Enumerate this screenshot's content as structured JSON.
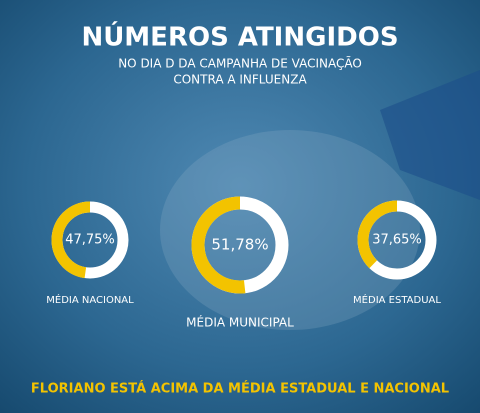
{
  "header": {
    "title": "NÚMEROS ATINGIDOS",
    "subtitle_lines": [
      "NO DIA D DA CAMPANHA DE VACINAÇÃO",
      "CONTRA A INFLUENZA"
    ]
  },
  "chart_data": [
    {
      "type": "donut",
      "categories": [
        "MÉDIA NACIONAL"
      ],
      "values": [
        47.75
      ],
      "value_labels": [
        "47,75%"
      ],
      "color": "#f3c300",
      "ylim": [
        0,
        100
      ]
    },
    {
      "type": "donut",
      "categories": [
        "MÉDIA MUNICIPAL"
      ],
      "values": [
        51.78
      ],
      "value_labels": [
        "51,78%"
      ],
      "color": "#f3c300",
      "ylim": [
        0,
        100
      ]
    },
    {
      "type": "donut",
      "categories": [
        "MÉDIA ESTADUAL"
      ],
      "values": [
        37.65
      ],
      "value_labels": [
        "37,65%"
      ],
      "color": "#f3c300",
      "ylim": [
        0,
        100
      ]
    }
  ],
  "footer": {
    "text": "FLORIANO ESTÁ ACIMA DA MÉDIA ESTADUAL E NACIONAL"
  }
}
